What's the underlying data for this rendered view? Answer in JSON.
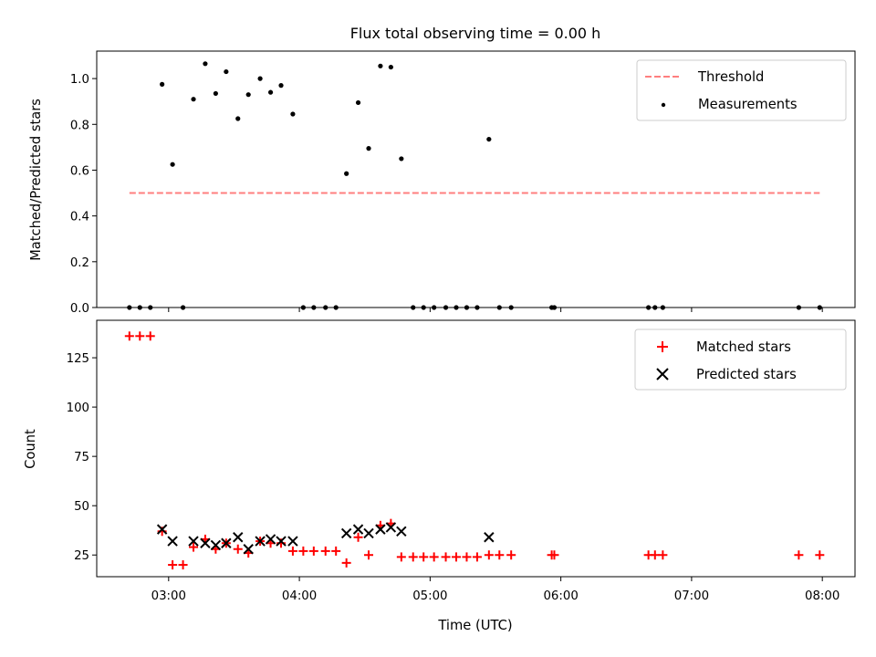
{
  "chart_data": [
    {
      "type": "scatter",
      "title": "Flux total observing time = 0.00 h",
      "xlabel": "",
      "ylabel": "Matched/Predicted stars",
      "xlim": [
        2.45,
        8.25
      ],
      "ylim": [
        0,
        1.12
      ],
      "yticks": [
        0.0,
        0.2,
        0.4,
        0.6,
        0.8,
        1.0
      ],
      "ytick_labels": [
        "0.0",
        "0.2",
        "0.4",
        "0.6",
        "0.8",
        "1.0"
      ],
      "legend_position": "top-right",
      "series": [
        {
          "name": "Threshold",
          "kind": "line",
          "style": "dashed",
          "color": "#ff7f7f",
          "x": [
            2.7,
            7.98
          ],
          "y": [
            0.5,
            0.5
          ]
        },
        {
          "name": "Measurements",
          "kind": "scatter",
          "marker": "dot",
          "color": "#000000",
          "x": [
            2.7,
            2.78,
            2.86,
            2.95,
            3.03,
            3.11,
            3.19,
            3.28,
            3.36,
            3.44,
            3.53,
            3.61,
            3.7,
            3.78,
            3.86,
            3.95,
            4.03,
            4.11,
            4.2,
            4.28,
            4.36,
            4.45,
            4.53,
            4.62,
            4.7,
            4.78,
            4.87,
            4.95,
            5.03,
            5.12,
            5.2,
            5.28,
            5.36,
            5.45,
            5.53,
            5.62,
            5.93,
            5.95,
            6.67,
            6.72,
            6.78,
            7.82,
            7.98
          ],
          "y": [
            0,
            0,
            0,
            0.975,
            0.625,
            0,
            0.91,
            1.065,
            0.935,
            1.03,
            0.825,
            0.93,
            1.0,
            0.94,
            0.97,
            0.845,
            0,
            0,
            0,
            0,
            0.585,
            0.895,
            0.695,
            1.055,
            1.05,
            0.65,
            0,
            0,
            0,
            0,
            0,
            0,
            0,
            0.735,
            0,
            0,
            0,
            0,
            0,
            0,
            0,
            0,
            0
          ]
        }
      ]
    },
    {
      "type": "scatter",
      "title": "",
      "xlabel": "Time (UTC)",
      "ylabel": "Count",
      "xlim": [
        2.45,
        8.25
      ],
      "ylim": [
        14,
        144
      ],
      "xticks": [
        3,
        4,
        5,
        6,
        7,
        8
      ],
      "xtick_labels": [
        "03:00",
        "04:00",
        "05:00",
        "06:00",
        "07:00",
        "08:00"
      ],
      "yticks": [
        25,
        50,
        75,
        100,
        125
      ],
      "ytick_labels": [
        "25",
        "50",
        "75",
        "100",
        "125"
      ],
      "legend_position": "top-right",
      "series": [
        {
          "name": "Matched stars",
          "kind": "scatter",
          "marker": "plus",
          "color": "#ff0000",
          "x": [
            2.7,
            2.78,
            2.86,
            2.95,
            3.03,
            3.11,
            3.19,
            3.28,
            3.36,
            3.44,
            3.53,
            3.61,
            3.7,
            3.78,
            3.86,
            3.95,
            4.03,
            4.11,
            4.2,
            4.28,
            4.36,
            4.45,
            4.53,
            4.62,
            4.7,
            4.78,
            4.87,
            4.95,
            5.03,
            5.12,
            5.2,
            5.28,
            5.36,
            5.45,
            5.53,
            5.62,
            5.93,
            5.95,
            6.67,
            6.72,
            6.78,
            7.82,
            7.98
          ],
          "y": [
            136,
            136,
            136,
            37,
            20,
            20,
            29,
            33,
            28,
            31,
            28,
            26,
            32,
            31,
            31,
            27,
            27,
            27,
            27,
            27,
            21,
            34,
            25,
            40,
            41,
            24,
            24,
            24,
            24,
            24,
            24,
            24,
            24,
            25,
            25,
            25,
            25,
            25,
            25,
            25,
            25,
            25,
            25
          ]
        },
        {
          "name": "Predicted stars",
          "kind": "scatter",
          "marker": "x",
          "color": "#000000",
          "x": [
            2.95,
            3.03,
            3.19,
            3.28,
            3.36,
            3.44,
            3.53,
            3.61,
            3.7,
            3.78,
            3.86,
            3.95,
            4.36,
            4.45,
            4.53,
            4.62,
            4.7,
            4.78,
            5.45
          ],
          "y": [
            38,
            32,
            32,
            31,
            30,
            31,
            34,
            28,
            32,
            33,
            32,
            32,
            36,
            38,
            36,
            38,
            39,
            37,
            34
          ]
        }
      ]
    }
  ]
}
